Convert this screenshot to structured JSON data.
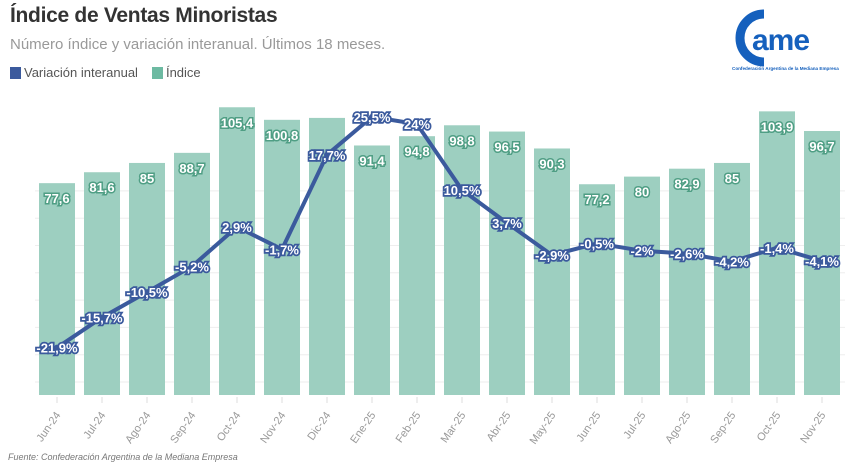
{
  "header": {
    "title": "Índice de Ventas Minoristas",
    "subtitle": "Número índice y variación interanual. Últimos 18 meses.",
    "source": "Fuente: Confederación Argentina de la Mediana Empresa"
  },
  "logo": {
    "text": "CAME",
    "tagline": "Confederación Argentina de la Mediana Empresa",
    "color": "#1560bd"
  },
  "chart_data": {
    "type": "bar+line",
    "title": "Índice de Ventas Minoristas",
    "subtitle": "Número índice y variación interanual. Últimos 18 meses.",
    "categories": [
      "Jun-24",
      "Jul-24",
      "Ago-24",
      "Sep-24",
      "Oct-24",
      "Nov-24",
      "Dic-24",
      "Ene-25",
      "Feb-25",
      "Mar-25",
      "Abr-25",
      "May-25",
      "Jun-25",
      "Jul-25",
      "Ago-25",
      "Sep-25",
      "Oct-25",
      "Nov-25"
    ],
    "series": [
      {
        "name": "Índice",
        "type": "bar",
        "color": "#9dcfc0",
        "label_color": "#4f9e84",
        "values": [
          77.6,
          81.6,
          85,
          88.7,
          105.4,
          100.8,
          101.5,
          91.4,
          94.8,
          98.8,
          96.5,
          90.3,
          77.2,
          80,
          82.9,
          85,
          103.9,
          96.7
        ],
        "labels": [
          "77,6",
          "81,6",
          "85",
          "88,7",
          "105,4",
          "100,8",
          "",
          "91,4",
          "94,8",
          "98,8",
          "96,5",
          "90,3",
          "77,2",
          "80",
          "82,9",
          "85",
          "103,9",
          "96,7"
        ]
      },
      {
        "name": "Variación interanual",
        "type": "line",
        "color": "#3b5a9d",
        "values": [
          -21.9,
          -15.7,
          -10.5,
          -5.2,
          2.9,
          -1.7,
          17.7,
          25.5,
          24,
          10.5,
          3.7,
          -2.9,
          -0.5,
          -2,
          -2.6,
          -4.2,
          -1.4,
          -4.1
        ],
        "labels": [
          "-21,9%",
          "-15,7%",
          "-10,5%",
          "-5,2%",
          "2,9%",
          "-1,7%",
          "17,7%",
          "25,5%",
          "24%",
          "10,5%",
          "3,7%",
          "-2,9%",
          "-0,5%",
          "-2%",
          "-2,6%",
          "-4,2%",
          "-1,4%",
          "-4,1%"
        ]
      }
    ],
    "legend": [
      "Variación interanual",
      "Índice"
    ],
    "legend_placement": "top-left",
    "grid": true
  }
}
